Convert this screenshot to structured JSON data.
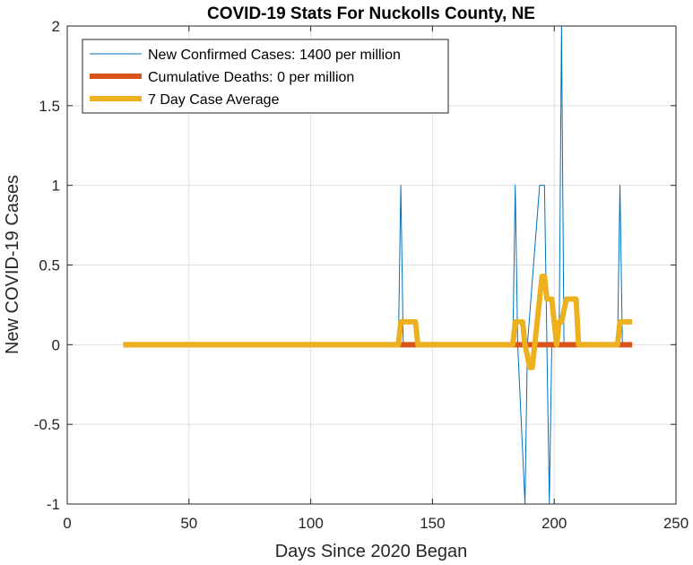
{
  "chart_data": {
    "type": "line",
    "title": "COVID-19 Stats For Nuckolls County, NE",
    "xlabel": "Days Since 2020 Began",
    "ylabel": "New COVID-19 Cases",
    "xlim": [
      0,
      250
    ],
    "ylim": [
      -1,
      2
    ],
    "xticks": [
      0,
      50,
      100,
      150,
      200,
      250
    ],
    "yticks": [
      -1,
      -0.5,
      0,
      0.5,
      1,
      1.5,
      2
    ],
    "xtick_labels": [
      "0",
      "50",
      "100",
      "150",
      "200",
      "250"
    ],
    "ytick_labels": [
      "-1",
      "-0.5",
      "0",
      "0.5",
      "1",
      "1.5",
      "2"
    ],
    "grid": true,
    "legend_position": "top-left",
    "series": [
      {
        "name": "New Confirmed Cases: 1400 per million",
        "color": "#0072BD",
        "style": "thin",
        "x": [
          23,
          136,
          137,
          138,
          183,
          184,
          185,
          188,
          189,
          194,
          196,
          197,
          198,
          199,
          202,
          203,
          204,
          226,
          227,
          228,
          232
        ],
        "y": [
          0,
          0,
          1,
          0,
          0,
          1,
          0,
          -1,
          0,
          1,
          1,
          0,
          -1,
          0,
          0,
          2,
          0,
          0,
          1,
          0,
          0
        ]
      },
      {
        "name": "Cumulative Deaths: 0 per million",
        "color": "#D95319",
        "style": "thick",
        "x": [
          23,
          232
        ],
        "y": [
          0,
          0
        ]
      },
      {
        "name": "7 Day Case Average",
        "color": "#EDB120",
        "style": "thick",
        "x": [
          23,
          136,
          137,
          143,
          144,
          183,
          184,
          187,
          188,
          190,
          191,
          192,
          193,
          194,
          195,
          196,
          197,
          198,
          199,
          200,
          201,
          202,
          203,
          205,
          206,
          209,
          210,
          226,
          227,
          232
        ],
        "y": [
          0,
          0,
          0.143,
          0.143,
          0,
          0,
          0.143,
          0.143,
          0,
          -0.143,
          -0.143,
          0,
          0.143,
          0.286,
          0.429,
          0.429,
          0.286,
          0.286,
          0.286,
          0.143,
          0,
          0.143,
          0.143,
          0.286,
          0.286,
          0.286,
          0,
          0,
          0.143,
          0.143
        ]
      }
    ]
  }
}
